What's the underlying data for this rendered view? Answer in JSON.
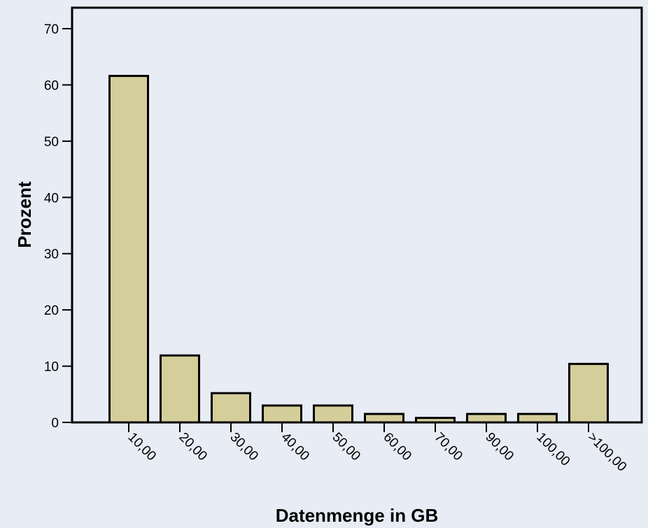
{
  "chart_data": {
    "type": "bar",
    "title": "",
    "xlabel": "Datenmenge in GB",
    "ylabel": "Prozent",
    "categories": [
      "10,00",
      "20,00",
      "30,00",
      "40,00",
      "50,00",
      "60,00",
      "70,00",
      "90,00",
      "100,00",
      ">100,00"
    ],
    "values": [
      61.6,
      11.9,
      5.2,
      3.0,
      3.0,
      1.5,
      0.8,
      1.5,
      1.5,
      10.4
    ],
    "ylim": [
      0,
      70
    ],
    "yticks": [
      0,
      10,
      20,
      30,
      40,
      50,
      60,
      70
    ],
    "grid": false,
    "legend": "none",
    "colors": {
      "bar_fill": "#D4CE9B",
      "bar_stroke": "#000000",
      "background": "#E8ECF4",
      "plot_background": "#E8ECF4"
    }
  }
}
